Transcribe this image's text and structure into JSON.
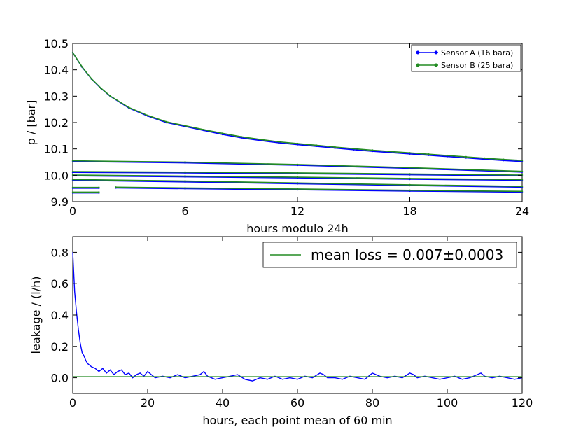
{
  "colors": {
    "sensor_a": "#0000ff",
    "sensor_b": "#228b22",
    "axes": "#000000",
    "background": "#ffffff"
  },
  "chart_data": [
    {
      "type": "scatter",
      "title": "",
      "xlabel": "hours modulo 24h",
      "ylabel": "p / [bar]",
      "xlim": [
        0,
        24
      ],
      "ylim": [
        9.9,
        10.5
      ],
      "x_ticks": [
        0,
        6,
        12,
        18,
        24
      ],
      "x_tick_labels": [
        "0",
        "6",
        "12",
        "18",
        "24"
      ],
      "y_ticks": [
        9.9,
        10.0,
        10.1,
        10.2,
        10.3,
        10.4,
        10.5
      ],
      "y_tick_labels": [
        "9.9",
        "10.0",
        "10.1",
        "10.2",
        "10.3",
        "10.4",
        "10.5"
      ],
      "grid": false,
      "legend_position": "top-right",
      "legend": [
        "Sensor A (16 bara)",
        "Sensor B (25 bara)"
      ],
      "series": [
        {
          "name": "Sensor A (16 bara)",
          "color": "#0000ff",
          "segments": [
            {
              "x": [
                0,
                0.5,
                1,
                1.5,
                2,
                3,
                4,
                5,
                6,
                7,
                8,
                9,
                10,
                11,
                12,
                13,
                14,
                15,
                16,
                17,
                18,
                19,
                20,
                21,
                22,
                23,
                24
              ],
              "y": [
                10.465,
                10.41,
                10.365,
                10.33,
                10.3,
                10.255,
                10.225,
                10.2,
                10.185,
                10.17,
                10.155,
                10.142,
                10.132,
                10.123,
                10.116,
                10.11,
                10.103,
                10.097,
                10.091,
                10.086,
                10.081,
                10.076,
                10.071,
                10.066,
                10.061,
                10.056,
                10.052
              ]
            },
            {
              "x": [
                0,
                6,
                12,
                18,
                24
              ],
              "y": [
                10.052,
                10.047,
                10.038,
                10.026,
                10.012
              ]
            },
            {
              "x": [
                0,
                6,
                12,
                18,
                24
              ],
              "y": [
                10.011,
                10.009,
                10.006,
                10.002,
                9.998
              ]
            },
            {
              "x": [
                0,
                6,
                12,
                18,
                24
              ],
              "y": [
                9.998,
                9.994,
                9.99,
                9.985,
                9.981
              ]
            },
            {
              "x": [
                0,
                6,
                12,
                18,
                24
              ],
              "y": [
                9.981,
                9.975,
                9.968,
                9.961,
                9.955
              ]
            },
            {
              "x": [
                0,
                1.4
              ],
              "y": [
                9.951,
                9.951
              ]
            },
            {
              "x": [
                2.3,
                6,
                12,
                18,
                24
              ],
              "y": [
                9.952,
                9.949,
                9.945,
                9.94,
                9.936
              ]
            },
            {
              "x": [
                0,
                1.4
              ],
              "y": [
                9.933,
                9.933
              ]
            }
          ]
        },
        {
          "name": "Sensor B (25 bara)",
          "color": "#228b22",
          "segments": [
            {
              "x": [
                0,
                0.5,
                1,
                1.5,
                2,
                3,
                4,
                5,
                6,
                7,
                8,
                9,
                10,
                11,
                12,
                13,
                14,
                15,
                16,
                17,
                18,
                19,
                20,
                21,
                22,
                23,
                24
              ],
              "y": [
                10.465,
                10.411,
                10.366,
                10.331,
                10.301,
                10.257,
                10.227,
                10.203,
                10.188,
                10.173,
                10.159,
                10.146,
                10.136,
                10.127,
                10.12,
                10.114,
                10.107,
                10.101,
                10.095,
                10.09,
                10.085,
                10.08,
                10.075,
                10.07,
                10.065,
                10.06,
                10.056
              ]
            },
            {
              "x": [
                0,
                6,
                12,
                18,
                24
              ],
              "y": [
                10.055,
                10.05,
                10.041,
                10.029,
                10.015
              ]
            },
            {
              "x": [
                0,
                6,
                12,
                18,
                24
              ],
              "y": [
                10.014,
                10.012,
                10.009,
                10.005,
                10.001
              ]
            },
            {
              "x": [
                0,
                6,
                12,
                18,
                24
              ],
              "y": [
                10.001,
                9.997,
                9.993,
                9.988,
                9.984
              ]
            },
            {
              "x": [
                0,
                6,
                12,
                18,
                24
              ],
              "y": [
                9.984,
                9.978,
                9.971,
                9.964,
                9.958
              ]
            },
            {
              "x": [
                0,
                1.4
              ],
              "y": [
                9.954,
                9.954
              ]
            },
            {
              "x": [
                2.3,
                6,
                12,
                18,
                24
              ],
              "y": [
                9.955,
                9.952,
                9.948,
                9.943,
                9.939
              ]
            },
            {
              "x": [
                0,
                1.4
              ],
              "y": [
                9.936,
                9.936
              ]
            }
          ]
        }
      ]
    },
    {
      "type": "line",
      "title": "",
      "xlabel": "hours, each point mean of 60 min",
      "ylabel": "leakage / (l/h)",
      "xlim": [
        0,
        120
      ],
      "ylim": [
        -0.1,
        0.9
      ],
      "x_ticks": [
        0,
        20,
        40,
        60,
        80,
        100,
        120
      ],
      "x_tick_labels": [
        "0",
        "20",
        "40",
        "60",
        "80",
        "100",
        "120"
      ],
      "y_ticks": [
        0.0,
        0.2,
        0.4,
        0.6,
        0.8
      ],
      "y_tick_labels": [
        "0.0",
        "0.2",
        "0.4",
        "0.6",
        "0.8"
      ],
      "grid": false,
      "legend_position": "top-right",
      "legend": [
        "mean loss = 0.007±0.0003"
      ],
      "series": [
        {
          "name": "leakage",
          "color": "#0000ff",
          "x": [
            0,
            0.5,
            1,
            1.5,
            2,
            2.5,
            3,
            3.5,
            4,
            5,
            6,
            7,
            8,
            9,
            10,
            11,
            12,
            13,
            14,
            15,
            16,
            17,
            18,
            19,
            20,
            21,
            22,
            24,
            26,
            28,
            30,
            32,
            34,
            35,
            36,
            38,
            40,
            42,
            44,
            46,
            48,
            50,
            52,
            54,
            56,
            58,
            60,
            62,
            64,
            66,
            67,
            68,
            70,
            72,
            74,
            76,
            78,
            80,
            81,
            82,
            84,
            86,
            88,
            90,
            91,
            92,
            94,
            96,
            98,
            100,
            102,
            104,
            106,
            108,
            109,
            110,
            112,
            114,
            116,
            118,
            120
          ],
          "y": [
            0.8,
            0.55,
            0.42,
            0.31,
            0.22,
            0.16,
            0.14,
            0.11,
            0.09,
            0.07,
            0.06,
            0.04,
            0.06,
            0.03,
            0.05,
            0.02,
            0.04,
            0.05,
            0.02,
            0.03,
            0.0,
            0.02,
            0.03,
            0.01,
            0.04,
            0.02,
            0.0,
            0.01,
            0.0,
            0.02,
            0.0,
            0.01,
            0.02,
            0.04,
            0.01,
            -0.01,
            0.0,
            0.01,
            0.02,
            -0.01,
            -0.02,
            0.0,
            -0.01,
            0.01,
            -0.01,
            0.0,
            -0.01,
            0.01,
            0.0,
            0.03,
            0.02,
            0.0,
            0.0,
            -0.01,
            0.01,
            0.0,
            -0.01,
            0.03,
            0.02,
            0.01,
            0.0,
            0.01,
            0.0,
            0.03,
            0.02,
            0.0,
            0.01,
            0.0,
            -0.01,
            0.0,
            0.01,
            -0.01,
            0.0,
            0.02,
            0.03,
            0.01,
            0.0,
            0.01,
            0.0,
            -0.01,
            0.0
          ]
        },
        {
          "name": "mean loss = 0.007±0.0003",
          "color": "#228b22",
          "x": [
            0,
            120
          ],
          "y": [
            0.007,
            0.007
          ]
        }
      ]
    }
  ]
}
